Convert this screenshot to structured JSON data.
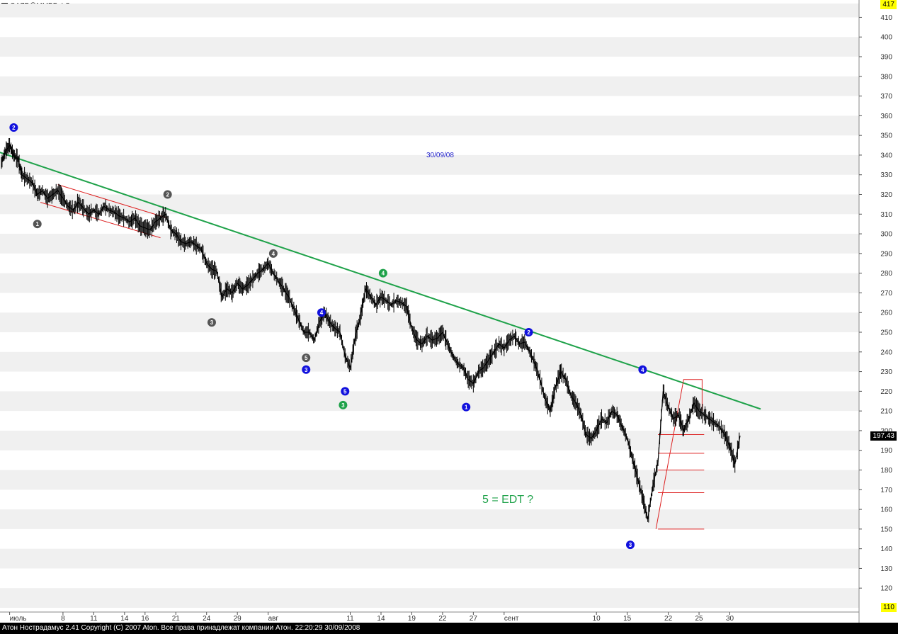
{
  "window": {
    "title": "GAZP@ММВБ ФС - час",
    "status_bar": "Атон Нострадамус 2.41 Copyright (C) 2007 Aton. Все права принадлежат компании Атон. 22:20:29 30/09/2008"
  },
  "price_boxes": {
    "current": "197.43",
    "max": "417",
    "min": "110"
  },
  "colors": {
    "price": "#000000",
    "trendline": "#1fa24a",
    "channel": "#dd2222",
    "band": "#f0f0f0",
    "blue": "#1111dd",
    "green": "#1fa24a",
    "gray": "#555555"
  },
  "chart_data": {
    "type": "line",
    "title": "",
    "xlabel": "",
    "ylabel": "",
    "ylim": [
      110,
      417
    ],
    "y_ticks": [
      120,
      130,
      140,
      150,
      160,
      170,
      180,
      190,
      200,
      210,
      220,
      230,
      240,
      250,
      260,
      270,
      280,
      290,
      300,
      310,
      320,
      330,
      340,
      350,
      360,
      370,
      380,
      390,
      400,
      410
    ],
    "x_ticks": [
      {
        "label": "июль",
        "i": 0.8
      },
      {
        "label": "8",
        "i": 6
      },
      {
        "label": "11",
        "i": 9
      },
      {
        "label": "14",
        "i": 12
      },
      {
        "label": "16",
        "i": 14
      },
      {
        "label": "21",
        "i": 17
      },
      {
        "label": "24",
        "i": 20
      },
      {
        "label": "29",
        "i": 23
      },
      {
        "label": "авг",
        "i": 26
      },
      {
        "label": "11",
        "i": 34
      },
      {
        "label": "14",
        "i": 37
      },
      {
        "label": "19",
        "i": 40
      },
      {
        "label": "22",
        "i": 43
      },
      {
        "label": "27",
        "i": 46
      },
      {
        "label": "сент",
        "i": 49
      },
      {
        "label": "10",
        "i": 58
      },
      {
        "label": "15",
        "i": 61
      },
      {
        "label": "22",
        "i": 65
      },
      {
        "label": "25",
        "i": 68
      },
      {
        "label": "30",
        "i": 71
      }
    ],
    "x_end": 72,
    "series": [
      {
        "points": [
          [
            0,
            336
          ],
          [
            0.4,
            342
          ],
          [
            0.8,
            345
          ],
          [
            1.2,
            340
          ],
          [
            1.6,
            338
          ],
          [
            2,
            330
          ],
          [
            2.5,
            328
          ],
          [
            3,
            326
          ],
          [
            3.5,
            320
          ],
          [
            4,
            322
          ],
          [
            4.5,
            318
          ],
          [
            5,
            320
          ],
          [
            5.5,
            322
          ],
          [
            6,
            318
          ],
          [
            6.5,
            314
          ],
          [
            7,
            312
          ],
          [
            7.5,
            316
          ],
          [
            8,
            313
          ],
          [
            8.5,
            310
          ],
          [
            9,
            312
          ],
          [
            9.5,
            310
          ],
          [
            10,
            314
          ],
          [
            10.5,
            312
          ],
          [
            11,
            311
          ],
          [
            11.5,
            309
          ],
          [
            12,
            308
          ],
          [
            12.5,
            306
          ],
          [
            13,
            308
          ],
          [
            13.5,
            304
          ],
          [
            14,
            303
          ],
          [
            14.5,
            302
          ],
          [
            15,
            306
          ],
          [
            15.5,
            308
          ],
          [
            16,
            310
          ],
          [
            16.5,
            302
          ],
          [
            17,
            300
          ],
          [
            17.5,
            296
          ],
          [
            18,
            295
          ],
          [
            18.5,
            296
          ],
          [
            19,
            294
          ],
          [
            19.5,
            292
          ],
          [
            20,
            285
          ],
          [
            20.5,
            282
          ],
          [
            21,
            281
          ],
          [
            21.5,
            268
          ],
          [
            22,
            272
          ],
          [
            22.5,
            270
          ],
          [
            23,
            275
          ],
          [
            23.5,
            272
          ],
          [
            24,
            274
          ],
          [
            24.5,
            277
          ],
          [
            25,
            280
          ],
          [
            25.5,
            282
          ],
          [
            26,
            285
          ],
          [
            26.5,
            280
          ],
          [
            27,
            276
          ],
          [
            27.5,
            272
          ],
          [
            28,
            268
          ],
          [
            28.5,
            262
          ],
          [
            29,
            256
          ],
          [
            29.5,
            250
          ],
          [
            30,
            250
          ],
          [
            30.5,
            246
          ],
          [
            31,
            255
          ],
          [
            31.5,
            260
          ],
          [
            32,
            255
          ],
          [
            32.5,
            252
          ],
          [
            33,
            250
          ],
          [
            33.5,
            238
          ],
          [
            34,
            232
          ],
          [
            34.5,
            248
          ],
          [
            35,
            258
          ],
          [
            35.5,
            272
          ],
          [
            36,
            268
          ],
          [
            36.5,
            264
          ],
          [
            37,
            268
          ],
          [
            37.5,
            266
          ],
          [
            38,
            264
          ],
          [
            38.5,
            266
          ],
          [
            39,
            265
          ],
          [
            39.5,
            263
          ],
          [
            40,
            252
          ],
          [
            40.5,
            246
          ],
          [
            41,
            244
          ],
          [
            41.5,
            248
          ],
          [
            42,
            246
          ],
          [
            42.5,
            247
          ],
          [
            43,
            250
          ],
          [
            43.5,
            244
          ],
          [
            44,
            238
          ],
          [
            44.5,
            234
          ],
          [
            45,
            232
          ],
          [
            45.5,
            226
          ],
          [
            46,
            224
          ],
          [
            46.5,
            230
          ],
          [
            47,
            232
          ],
          [
            47.5,
            236
          ],
          [
            48,
            240
          ],
          [
            48.5,
            244
          ],
          [
            49,
            242
          ],
          [
            49.5,
            246
          ],
          [
            50,
            248
          ],
          [
            50.5,
            244
          ],
          [
            51,
            245
          ],
          [
            51.5,
            240
          ],
          [
            52,
            234
          ],
          [
            52.5,
            226
          ],
          [
            53,
            216
          ],
          [
            53.5,
            210
          ],
          [
            54,
            222
          ],
          [
            54.5,
            230
          ],
          [
            55,
            226
          ],
          [
            55.5,
            218
          ],
          [
            56,
            214
          ],
          [
            56.5,
            208
          ],
          [
            57,
            198
          ],
          [
            57.5,
            196
          ],
          [
            58,
            200
          ],
          [
            58.5,
            206
          ],
          [
            59,
            204
          ],
          [
            59.5,
            210
          ],
          [
            60,
            208
          ],
          [
            60.5,
            202
          ],
          [
            61,
            196
          ],
          [
            61.5,
            186
          ],
          [
            62,
            176
          ],
          [
            62.5,
            166
          ],
          [
            63,
            155
          ],
          [
            63.5,
            172
          ],
          [
            64,
            184
          ],
          [
            64.5,
            220
          ],
          [
            65,
            212
          ],
          [
            65.5,
            206
          ],
          [
            66,
            208
          ],
          [
            66.5,
            200
          ],
          [
            67,
            206
          ],
          [
            67.5,
            214
          ],
          [
            68,
            210
          ],
          [
            68.5,
            208
          ],
          [
            69,
            206
          ],
          [
            69.5,
            204
          ],
          [
            70,
            202
          ],
          [
            70.5,
            198
          ],
          [
            71,
            192
          ],
          [
            71.5,
            183
          ],
          [
            72,
            197.43
          ]
        ]
      }
    ],
    "trendline": [
      [
        -0.5,
        342
      ],
      [
        74,
        211
      ]
    ],
    "channel_lines": [
      [
        [
          3.8,
          316
        ],
        [
          15.5,
          298
        ]
      ],
      [
        [
          5.5,
          325
        ],
        [
          16.2,
          308
        ]
      ]
    ],
    "edt": {
      "triangle": [
        [
          63.8,
          150
        ],
        [
          66.5,
          226
        ],
        [
          68.3,
          226
        ]
      ],
      "fib_levels": [
        150,
        168.5,
        180,
        188.5,
        198
      ]
    },
    "wave_markers": [
      {
        "label": "2",
        "i": 1.2,
        "y": 354,
        "color": "blue"
      },
      {
        "label": "1",
        "i": 3.5,
        "y": 305,
        "color": "gray"
      },
      {
        "label": "2",
        "i": 16.2,
        "y": 320,
        "color": "gray"
      },
      {
        "label": "3",
        "i": 20.5,
        "y": 255,
        "color": "gray"
      },
      {
        "label": "4",
        "i": 26.5,
        "y": 290,
        "color": "gray"
      },
      {
        "label": "4",
        "i": 31.2,
        "y": 260,
        "color": "blue"
      },
      {
        "label": "5",
        "i": 29.7,
        "y": 237,
        "color": "gray"
      },
      {
        "label": "3",
        "i": 29.7,
        "y": 231,
        "color": "blue"
      },
      {
        "label": "5",
        "i": 33.5,
        "y": 220,
        "color": "blue"
      },
      {
        "label": "3",
        "i": 33.3,
        "y": 213,
        "color": "green"
      },
      {
        "label": "4",
        "i": 37.2,
        "y": 280,
        "color": "green"
      },
      {
        "label": "1",
        "i": 45.3,
        "y": 212,
        "color": "blue"
      },
      {
        "label": "2",
        "i": 51.4,
        "y": 250,
        "color": "blue"
      },
      {
        "label": "4",
        "i": 62.5,
        "y": 231,
        "color": "blue"
      },
      {
        "label": "3",
        "i": 61.3,
        "y": 142,
        "color": "blue"
      }
    ]
  },
  "annotations": {
    "date_label": "30/09/08",
    "edt_label": "5 = EDT ?"
  }
}
